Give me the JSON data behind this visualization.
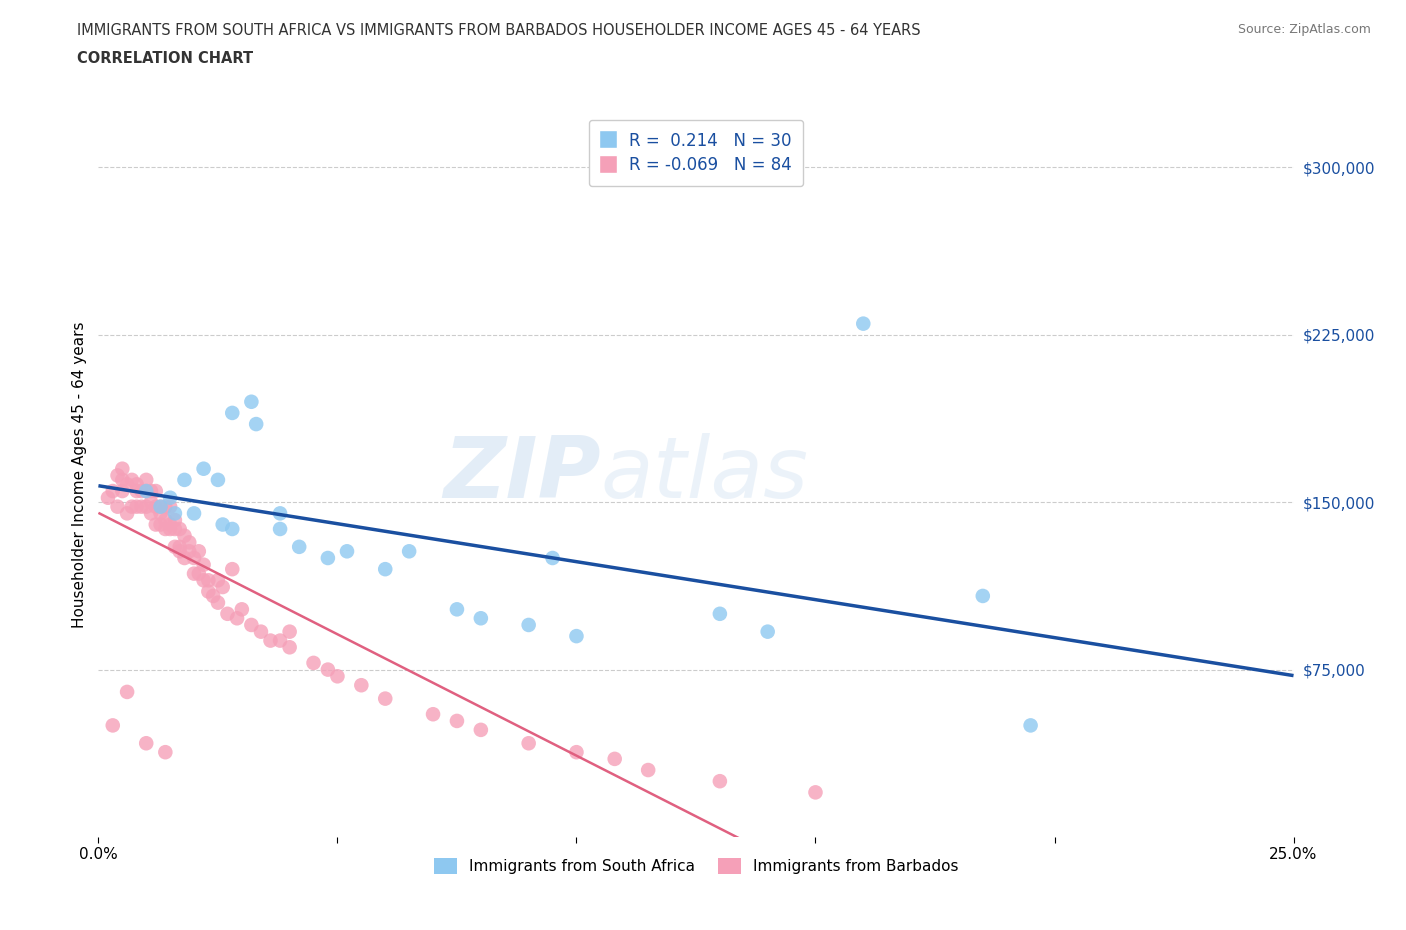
{
  "title_line1": "IMMIGRANTS FROM SOUTH AFRICA VS IMMIGRANTS FROM BARBADOS HOUSEHOLDER INCOME AGES 45 - 64 YEARS",
  "title_line2": "CORRELATION CHART",
  "source_text": "Source: ZipAtlas.com",
  "ylabel": "Householder Income Ages 45 - 64 years",
  "xlim": [
    0.0,
    0.25
  ],
  "ylim": [
    0,
    325000
  ],
  "ytick_positions": [
    75000,
    150000,
    225000,
    300000
  ],
  "ytick_labels": [
    "$75,000",
    "$150,000",
    "$225,000",
    "$300,000"
  ],
  "grid_color": "#cccccc",
  "background_color": "#ffffff",
  "watermark_zip": "ZIP",
  "watermark_atlas": "atlas",
  "south_africa_color": "#8EC8F0",
  "barbados_color": "#F5A0B8",
  "south_africa_line_color": "#1A4FA0",
  "barbados_line_color": "#E06080",
  "R_south_africa": 0.214,
  "N_south_africa": 30,
  "R_barbados": -0.069,
  "N_barbados": 84,
  "south_africa_x": [
    0.01,
    0.013,
    0.015,
    0.016,
    0.018,
    0.02,
    0.022,
    0.025,
    0.026,
    0.028,
    0.028,
    0.032,
    0.033,
    0.038,
    0.038,
    0.042,
    0.048,
    0.052,
    0.06,
    0.065,
    0.075,
    0.08,
    0.09,
    0.095,
    0.1,
    0.13,
    0.14,
    0.16,
    0.185,
    0.195
  ],
  "south_africa_y": [
    155000,
    148000,
    152000,
    145000,
    160000,
    145000,
    165000,
    160000,
    140000,
    138000,
    190000,
    195000,
    185000,
    138000,
    145000,
    130000,
    125000,
    128000,
    120000,
    128000,
    102000,
    98000,
    95000,
    125000,
    90000,
    100000,
    92000,
    230000,
    108000,
    50000
  ],
  "barbados_x": [
    0.002,
    0.003,
    0.004,
    0.004,
    0.005,
    0.005,
    0.005,
    0.006,
    0.006,
    0.007,
    0.007,
    0.008,
    0.008,
    0.008,
    0.009,
    0.009,
    0.01,
    0.01,
    0.01,
    0.011,
    0.011,
    0.011,
    0.012,
    0.012,
    0.012,
    0.013,
    0.013,
    0.013,
    0.014,
    0.014,
    0.014,
    0.015,
    0.015,
    0.015,
    0.016,
    0.016,
    0.016,
    0.017,
    0.017,
    0.017,
    0.018,
    0.018,
    0.019,
    0.019,
    0.02,
    0.02,
    0.021,
    0.021,
    0.022,
    0.022,
    0.023,
    0.023,
    0.024,
    0.025,
    0.025,
    0.026,
    0.027,
    0.028,
    0.029,
    0.03,
    0.032,
    0.034,
    0.036,
    0.038,
    0.04,
    0.04,
    0.045,
    0.048,
    0.05,
    0.055,
    0.06,
    0.07,
    0.075,
    0.08,
    0.09,
    0.1,
    0.108,
    0.115,
    0.13,
    0.15,
    0.003,
    0.006,
    0.01,
    0.014
  ],
  "barbados_y": [
    152000,
    155000,
    162000,
    148000,
    165000,
    155000,
    160000,
    158000,
    145000,
    160000,
    148000,
    158000,
    148000,
    155000,
    155000,
    148000,
    160000,
    148000,
    155000,
    150000,
    145000,
    155000,
    148000,
    155000,
    140000,
    148000,
    140000,
    145000,
    138000,
    148000,
    142000,
    138000,
    148000,
    140000,
    138000,
    130000,
    142000,
    130000,
    138000,
    128000,
    135000,
    125000,
    128000,
    132000,
    125000,
    118000,
    118000,
    128000,
    115000,
    122000,
    115000,
    110000,
    108000,
    115000,
    105000,
    112000,
    100000,
    120000,
    98000,
    102000,
    95000,
    92000,
    88000,
    88000,
    85000,
    92000,
    78000,
    75000,
    72000,
    68000,
    62000,
    55000,
    52000,
    48000,
    42000,
    38000,
    35000,
    30000,
    25000,
    20000,
    50000,
    65000,
    42000,
    38000
  ]
}
